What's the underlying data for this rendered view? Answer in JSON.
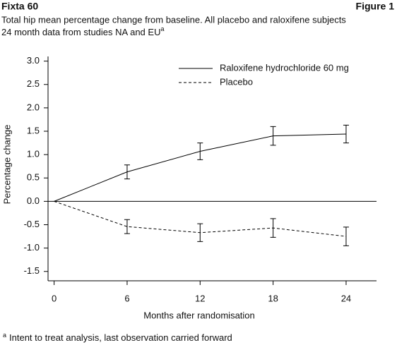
{
  "chart_data": {
    "type": "line",
    "title": "Fixta 60",
    "figure_label": "Figure 1",
    "subtitle": [
      "Total hip mean percentage change from baseline. All placebo and raloxifene subjects",
      "24 month data from studies NA and EU"
    ],
    "subtitle_marker": "a",
    "x": [
      0,
      6,
      12,
      18,
      24
    ],
    "series": [
      {
        "name": "Raloxifene hydrochloride 60 mg",
        "color": "#000000",
        "linestyle": "solid",
        "values": [
          0,
          0.63,
          1.07,
          1.4,
          1.44
        ],
        "errors": [
          null,
          0.15,
          0.18,
          0.2,
          0.19
        ]
      },
      {
        "name": "Placebo",
        "color": "#000000",
        "linestyle": "dashed",
        "values": [
          0,
          -0.54,
          -0.67,
          -0.57,
          -0.75
        ],
        "errors": [
          null,
          0.15,
          0.19,
          0.2,
          0.2
        ]
      }
    ],
    "xlim": [
      -0.5,
      26.5
    ],
    "xticks": [
      0,
      6,
      12,
      18,
      24
    ],
    "ylim": [
      -1.7,
      3.1
    ],
    "yticks": [
      {
        "value": 3.0,
        "label": "3.0"
      },
      2.5,
      {
        "value": 2.0,
        "label": "2.0"
      },
      1.5,
      {
        "value": 1.0,
        "label": "1.0"
      },
      0.5,
      {
        "value": 0.0,
        "label": "0.0"
      },
      -0.5,
      {
        "value": -1.0,
        "label": "-1.0"
      },
      -1.5
    ],
    "xlabel": "Months after randomisation",
    "ylabel": "Percentage change",
    "zero_line": true,
    "legend": "upper right",
    "footnote": {
      "marker": "a",
      "text": "Intent to treat analysis, last observation carried forward"
    }
  }
}
